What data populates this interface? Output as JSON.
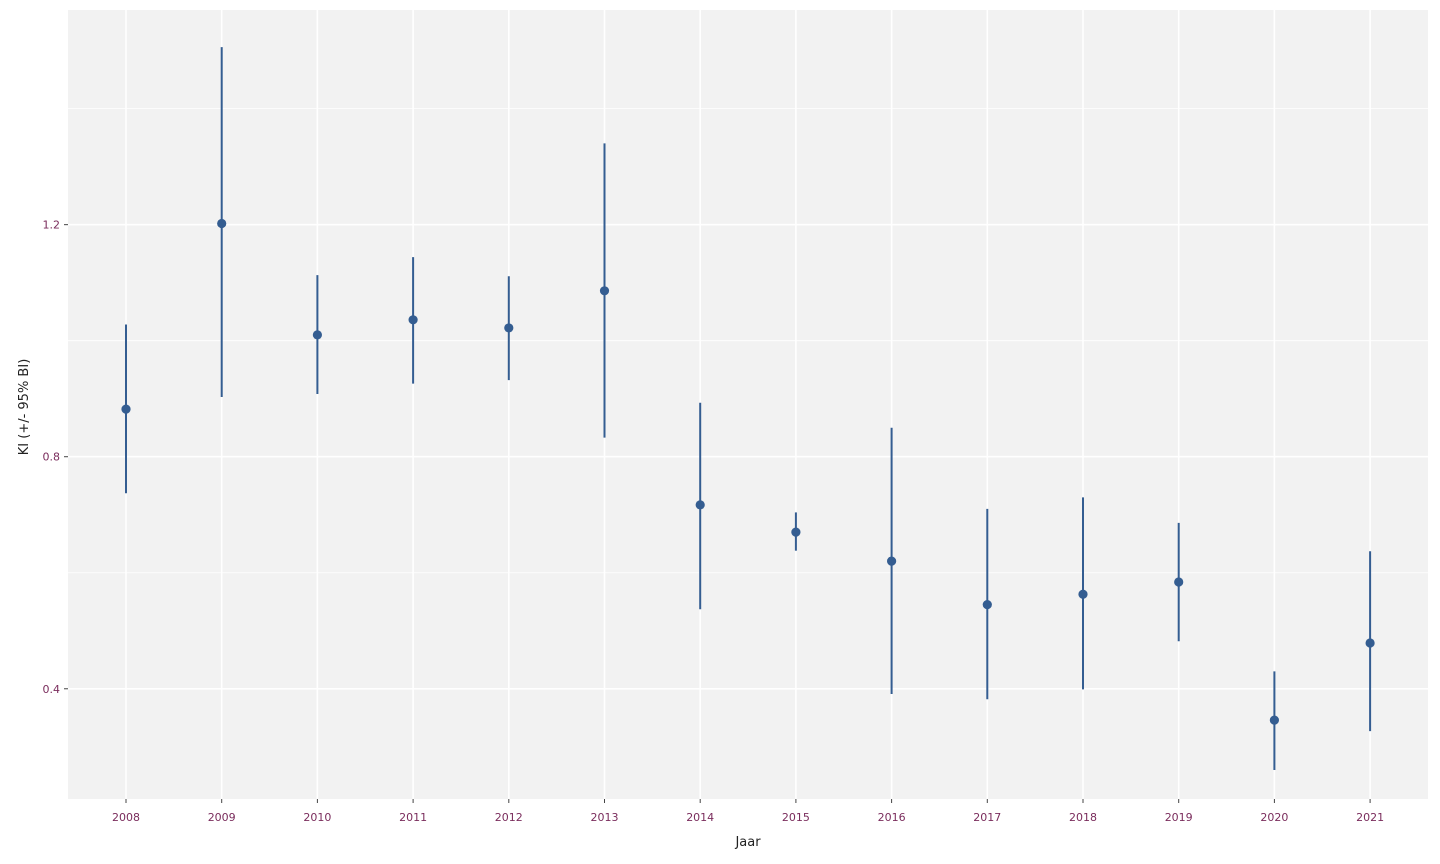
{
  "chart_data": {
    "type": "scatter",
    "title": "",
    "xlabel": "Jaar",
    "ylabel": "KI (+/- 95% BI)",
    "categories": [
      "2008",
      "2009",
      "2010",
      "2011",
      "2012",
      "2013",
      "2014",
      "2015",
      "2016",
      "2017",
      "2018",
      "2019",
      "2020",
      "2021"
    ],
    "series": [
      {
        "values": [
          0.882,
          1.202,
          1.01,
          1.036,
          1.022,
          1.086,
          0.717,
          0.67,
          0.62,
          0.545,
          0.563,
          0.584,
          0.346,
          0.479
        ],
        "lower": [
          0.737,
          0.903,
          0.908,
          0.926,
          0.932,
          0.833,
          0.537,
          0.638,
          0.391,
          0.382,
          0.399,
          0.482,
          0.26,
          0.327
        ],
        "upper": [
          1.028,
          1.506,
          1.113,
          1.144,
          1.111,
          1.34,
          0.893,
          0.704,
          0.85,
          0.71,
          0.73,
          0.686,
          0.43,
          0.637
        ]
      }
    ],
    "yticks": [
      0.4,
      0.8,
      1.2
    ],
    "ytick_labels": [
      "0.4",
      "0.8",
      "1.2"
    ],
    "ylim": [
      0.21,
      1.57
    ],
    "grid": true,
    "colors": {
      "panel": "#f2f2f2",
      "grid": "#ffffff",
      "series": "#345d91",
      "tick_text": "#7a2c5c",
      "axis_title": "#222222"
    }
  }
}
